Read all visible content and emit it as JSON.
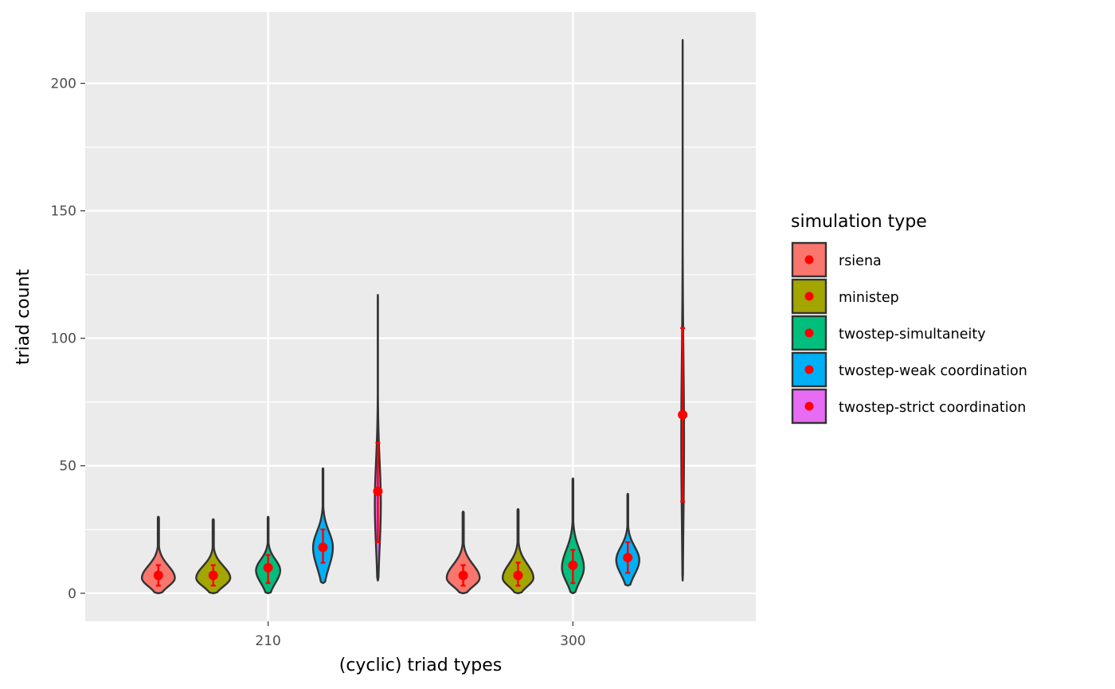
{
  "chart_data": {
    "type": "violin",
    "xlabel": "(cyclic) triad types",
    "ylabel": "triad count",
    "categories": [
      "210",
      "300"
    ],
    "y_ticks": [
      0,
      50,
      100,
      150,
      200
    ],
    "y_tick_labels": [
      "0",
      "50",
      "100",
      "150",
      "200"
    ],
    "ylim": [
      -11,
      228
    ],
    "grid": true,
    "legend": {
      "title": "simulation type",
      "position": "right"
    },
    "series": [
      {
        "name": "rsiena",
        "color": "#F8766D",
        "groups": [
          {
            "category": "210",
            "min": 0,
            "max": 30,
            "mode": 6,
            "width": 0.6,
            "mean": 7,
            "err_low": 3,
            "err_high": 11
          },
          {
            "category": "300",
            "min": 0,
            "max": 32,
            "mode": 6,
            "width": 0.6,
            "mean": 7,
            "err_low": 3,
            "err_high": 11
          }
        ]
      },
      {
        "name": "ministep",
        "color": "#A3A500",
        "groups": [
          {
            "category": "210",
            "min": 0,
            "max": 29,
            "mode": 6,
            "width": 0.62,
            "mean": 7,
            "err_low": 3,
            "err_high": 11
          },
          {
            "category": "300",
            "min": 0,
            "max": 33,
            "mode": 6,
            "width": 0.56,
            "mean": 7,
            "err_low": 3,
            "err_high": 12
          }
        ]
      },
      {
        "name": "twostep-simultaneity",
        "color": "#00BF7D",
        "groups": [
          {
            "category": "210",
            "min": 0,
            "max": 30,
            "mode": 9,
            "width": 0.44,
            "mean": 10,
            "err_low": 4,
            "err_high": 15
          },
          {
            "category": "300",
            "min": 0,
            "max": 45,
            "mode": 10,
            "width": 0.4,
            "mean": 11,
            "err_low": 4,
            "err_high": 17
          }
        ]
      },
      {
        "name": "twostep-weak coordination",
        "color": "#00B0F6",
        "groups": [
          {
            "category": "210",
            "min": 4,
            "max": 49,
            "mode": 18,
            "width": 0.36,
            "mean": 18,
            "err_low": 12,
            "err_high": 25
          },
          {
            "category": "300",
            "min": 3,
            "max": 39,
            "mode": 13,
            "width": 0.42,
            "mean": 14,
            "err_low": 8,
            "err_high": 20
          }
        ]
      },
      {
        "name": "twostep-strict coordination",
        "color": "#E76BF3",
        "groups": [
          {
            "category": "210",
            "min": 5,
            "max": 117,
            "mode": 35,
            "width": 0.11,
            "mean": 40,
            "err_low": 20,
            "err_high": 59
          },
          {
            "category": "300",
            "min": 5,
            "max": 217,
            "mode": 60,
            "width": 0.05,
            "mean": 70,
            "err_low": 36,
            "err_high": 104
          }
        ]
      }
    ],
    "mean_marker_color": "#FF0000"
  }
}
